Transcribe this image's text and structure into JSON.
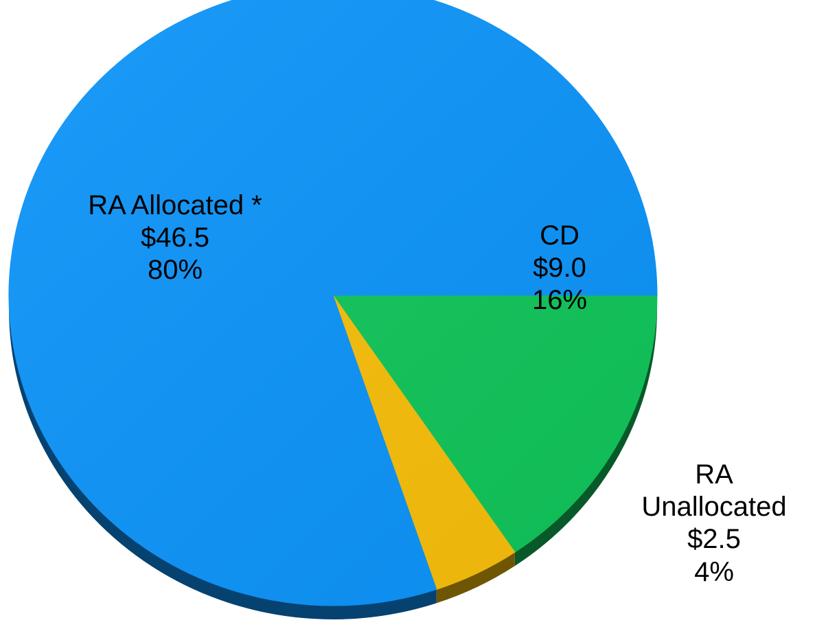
{
  "chart_data": {
    "type": "pie",
    "slices": [
      {
        "key": "ra_allocated",
        "name": "RA Allocated *",
        "value": 46.5,
        "value_label": "$46.5",
        "percent_label": "80%",
        "color": "#0c93f8"
      },
      {
        "key": "cd",
        "name": "CD",
        "value": 9.0,
        "value_label": "$9.0",
        "percent_label": "16%",
        "color": "#10c55a"
      },
      {
        "key": "ra_unallocated",
        "name": "RA Unallocated",
        "name_lines": [
          "RA",
          "Unallocated"
        ],
        "value": 2.5,
        "value_label": "$2.5",
        "percent_label": "4%",
        "color": "#f7be0a"
      }
    ],
    "style": "3d",
    "legend": "none"
  }
}
